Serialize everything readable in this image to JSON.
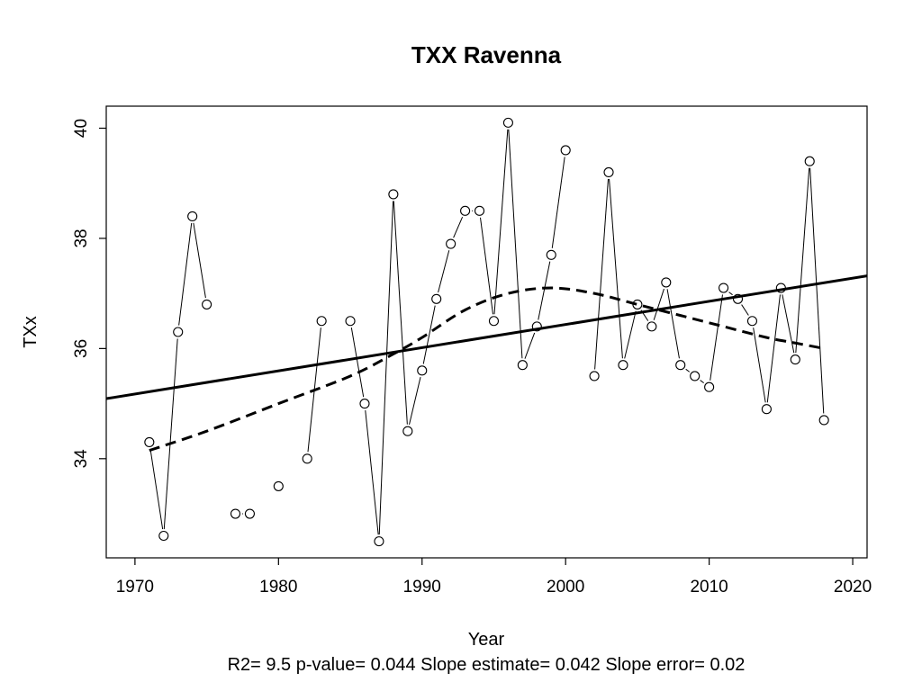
{
  "chart_data": {
    "type": "line",
    "title": "TXX   Ravenna",
    "xlabel": "Year",
    "ylabel": "TXx",
    "footer": "R2= 9.5  p-value= 0.044  Slope estimate= 0.042  Slope error= 0.02",
    "xlim": [
      1968,
      2021
    ],
    "ylim": [
      32.2,
      40.4
    ],
    "x_ticks": [
      1970,
      1980,
      1990,
      2000,
      2010,
      2020
    ],
    "y_ticks": [
      34,
      36,
      38,
      40
    ],
    "grid": false,
    "series": [
      {
        "style": "thin-line-with-open-circles",
        "x": [
          1971,
          1972,
          1973,
          1974,
          1975,
          1976,
          1977,
          1978,
          1979,
          1980,
          1981,
          1982,
          1983,
          1984,
          1985,
          1986,
          1987,
          1988,
          1989,
          1990,
          1991,
          1992,
          1993,
          1994,
          1995,
          1996,
          1997,
          1998,
          1999,
          2000,
          2001,
          2002,
          2003,
          2004,
          2005,
          2006,
          2007,
          2008,
          2009,
          2010,
          2011,
          2012,
          2013,
          2014,
          2015,
          2016,
          2017,
          2018
        ],
        "y": [
          34.3,
          32.6,
          36.3,
          38.4,
          36.8,
          null,
          33.0,
          33.0,
          null,
          33.5,
          null,
          34.0,
          36.5,
          null,
          36.5,
          35.0,
          32.5,
          38.8,
          34.5,
          35.6,
          36.9,
          37.9,
          38.5,
          38.5,
          36.5,
          40.1,
          35.7,
          36.4,
          37.7,
          39.6,
          null,
          35.5,
          39.2,
          35.7,
          36.8,
          36.4,
          37.2,
          35.7,
          35.5,
          35.3,
          37.1,
          36.9,
          36.5,
          34.9,
          37.1,
          35.8,
          39.4,
          34.7
        ]
      },
      {
        "style": "solid-thick-trend",
        "x": [
          1968,
          2021
        ],
        "y": [
          35.09,
          37.32
        ]
      },
      {
        "style": "dashed-thick-smooth",
        "x": [
          1971,
          1975,
          1980,
          1985,
          1988,
          1990,
          1993,
          1996,
          1999,
          2002,
          2005,
          2008,
          2011,
          2014,
          2016,
          2018
        ],
        "y": [
          34.15,
          34.5,
          35.0,
          35.5,
          35.9,
          36.2,
          36.7,
          37.0,
          37.1,
          37.0,
          36.8,
          36.6,
          36.4,
          36.2,
          36.1,
          36.0
        ]
      }
    ]
  }
}
